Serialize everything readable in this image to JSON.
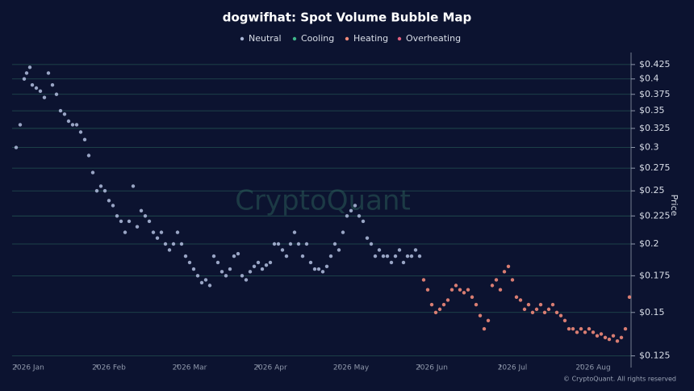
{
  "chart_data": {
    "type": "scatter",
    "title": "dogwifhat: Spot Volume Bubble Map",
    "y_label": "Price",
    "watermark": "CryptoQuant",
    "footer": "© CryptoQuant. All rights reserved",
    "log_y": true,
    "grid": true,
    "legend": "top",
    "xlim": [
      -0.05,
      7.62
    ],
    "xticks": [
      {
        "value": 0,
        "label": "2026 Jan"
      },
      {
        "value": 1,
        "label": "2026 Feb"
      },
      {
        "value": 2,
        "label": "2026 Mar"
      },
      {
        "value": 3,
        "label": "2026 Apr"
      },
      {
        "value": 4,
        "label": "2026 May"
      },
      {
        "value": 5,
        "label": "2026 Jun"
      },
      {
        "value": 6,
        "label": "2026 Jul"
      },
      {
        "value": 7,
        "label": "2026 Aug"
      }
    ],
    "ylim": [
      0.119,
      0.447
    ],
    "yticks": [
      {
        "value": 0.125,
        "label": "$0.125"
      },
      {
        "value": 0.15,
        "label": "$0.15"
      },
      {
        "value": 0.175,
        "label": "$0.175"
      },
      {
        "value": 0.2,
        "label": "$0.2"
      },
      {
        "value": 0.225,
        "label": "$0.225"
      },
      {
        "value": 0.25,
        "label": "$0.25"
      },
      {
        "value": 0.275,
        "label": "$0.275"
      },
      {
        "value": 0.3,
        "label": "$0.3"
      },
      {
        "value": 0.325,
        "label": "$0.325"
      },
      {
        "value": 0.35,
        "label": "$0.35"
      },
      {
        "value": 0.375,
        "label": "$0.375"
      },
      {
        "value": 0.4,
        "label": "$0.4"
      },
      {
        "value": 0.425,
        "label": "$0.425"
      }
    ],
    "series": [
      {
        "name": "Neutral",
        "color": "#a9b6d6",
        "x": [
          0,
          0.05,
          0.1,
          0.13,
          0.17,
          0.2,
          0.25,
          0.3,
          0.35,
          0.4,
          0.45,
          0.5,
          0.55,
          0.6,
          0.65,
          0.7,
          0.75,
          0.8,
          0.85,
          0.9,
          0.95,
          1,
          1.05,
          1.1,
          1.15,
          1.2,
          1.25,
          1.3,
          1.35,
          1.4,
          1.45,
          1.5,
          1.55,
          1.6,
          1.65,
          1.7,
          1.75,
          1.8,
          1.85,
          1.9,
          1.95,
          2,
          2.05,
          2.1,
          2.15,
          2.2,
          2.25,
          2.3,
          2.35,
          2.4,
          2.45,
          2.5,
          2.55,
          2.6,
          2.65,
          2.7,
          2.75,
          2.8,
          2.85,
          2.9,
          2.95,
          3,
          3.05,
          3.1,
          3.15,
          3.2,
          3.25,
          3.3,
          3.35,
          3.4,
          3.45,
          3.5,
          3.55,
          3.6,
          3.65,
          3.7,
          3.75,
          3.8,
          3.85,
          3.9,
          3.95,
          4,
          4.05,
          4.1,
          4.15,
          4.2,
          4.25,
          4.3,
          4.35,
          4.4,
          4.45,
          4.5,
          4.55,
          4.6,
          4.65,
          4.7,
          4.75,
          4.8,
          4.85,
          4.9,
          4.95,
          5
        ],
        "values": [
          0.3,
          0.33,
          0.4,
          0.41,
          0.42,
          0.39,
          0.385,
          0.38,
          0.37,
          0.41,
          0.39,
          0.375,
          0.35,
          0.345,
          0.335,
          0.33,
          0.33,
          0.32,
          0.31,
          0.29,
          0.27,
          0.25,
          0.255,
          0.25,
          0.24,
          0.235,
          0.225,
          0.22,
          0.21,
          0.22,
          0.255,
          0.215,
          0.23,
          0.225,
          0.22,
          0.21,
          0.205,
          0.21,
          0.2,
          0.195,
          0.2,
          0.21,
          0.2,
          0.19,
          0.185,
          0.18,
          0.175,
          0.17,
          0.172,
          0.168,
          0.19,
          0.185,
          0.178,
          0.175,
          0.18,
          0.19,
          0.192,
          0.175,
          0.172,
          0.178,
          0.182,
          0.185,
          0.18,
          0.183,
          0.185,
          0.2,
          0.2,
          0.195,
          0.19,
          0.2,
          0.21,
          0.2,
          0.19,
          0.2,
          0.185,
          0.18,
          0.18,
          0.178,
          0.182,
          0.19,
          0.2,
          0.195,
          0.21,
          0.225,
          0.23,
          0.235,
          0.225,
          0.22,
          0.205,
          0.2,
          0.19,
          0.195,
          0.19,
          0.19,
          0.185,
          0.19,
          0.195,
          0.185,
          0.19,
          0.19,
          0.195,
          0.19
        ]
      },
      {
        "name": "Cooling",
        "color": "#3fb68b",
        "x": [],
        "values": []
      },
      {
        "name": "Heating",
        "color": "#f08a7a",
        "x": [
          5.05,
          5.1,
          5.15,
          5.2,
          5.25,
          5.3,
          5.35,
          5.4,
          5.45,
          5.5,
          5.55,
          5.6,
          5.65,
          5.7,
          5.75,
          5.8,
          5.85,
          5.9,
          5.95,
          6,
          6.05,
          6.1,
          6.15,
          6.2,
          6.25,
          6.3,
          6.35,
          6.4,
          6.45,
          6.5,
          6.55,
          6.6,
          6.65,
          6.7,
          6.75,
          6.8,
          6.85,
          6.9,
          6.95,
          7,
          7.05,
          7.1,
          7.15,
          7.2,
          7.25,
          7.3,
          7.35,
          7.4,
          7.45,
          7.5,
          7.55,
          7.6
        ],
        "values": [
          0.172,
          0.165,
          0.155,
          0.15,
          0.152,
          0.155,
          0.158,
          0.165,
          0.168,
          0.165,
          0.163,
          0.165,
          0.16,
          0.155,
          0.148,
          0.14,
          0.145,
          0.168,
          0.172,
          0.165,
          0.178,
          0.182,
          0.172,
          0.16,
          0.158,
          0.152,
          0.155,
          0.15,
          0.152,
          0.155,
          0.15,
          0.152,
          0.155,
          0.15,
          0.148,
          0.145,
          0.14,
          0.14,
          0.138,
          0.14,
          0.138,
          0.14,
          0.138,
          0.136,
          0.137,
          0.135,
          0.134,
          0.136,
          0.133,
          0.135,
          0.14,
          0.16
        ]
      },
      {
        "name": "Overheating",
        "color": "#e0607e",
        "x": [],
        "values": []
      }
    ]
  }
}
